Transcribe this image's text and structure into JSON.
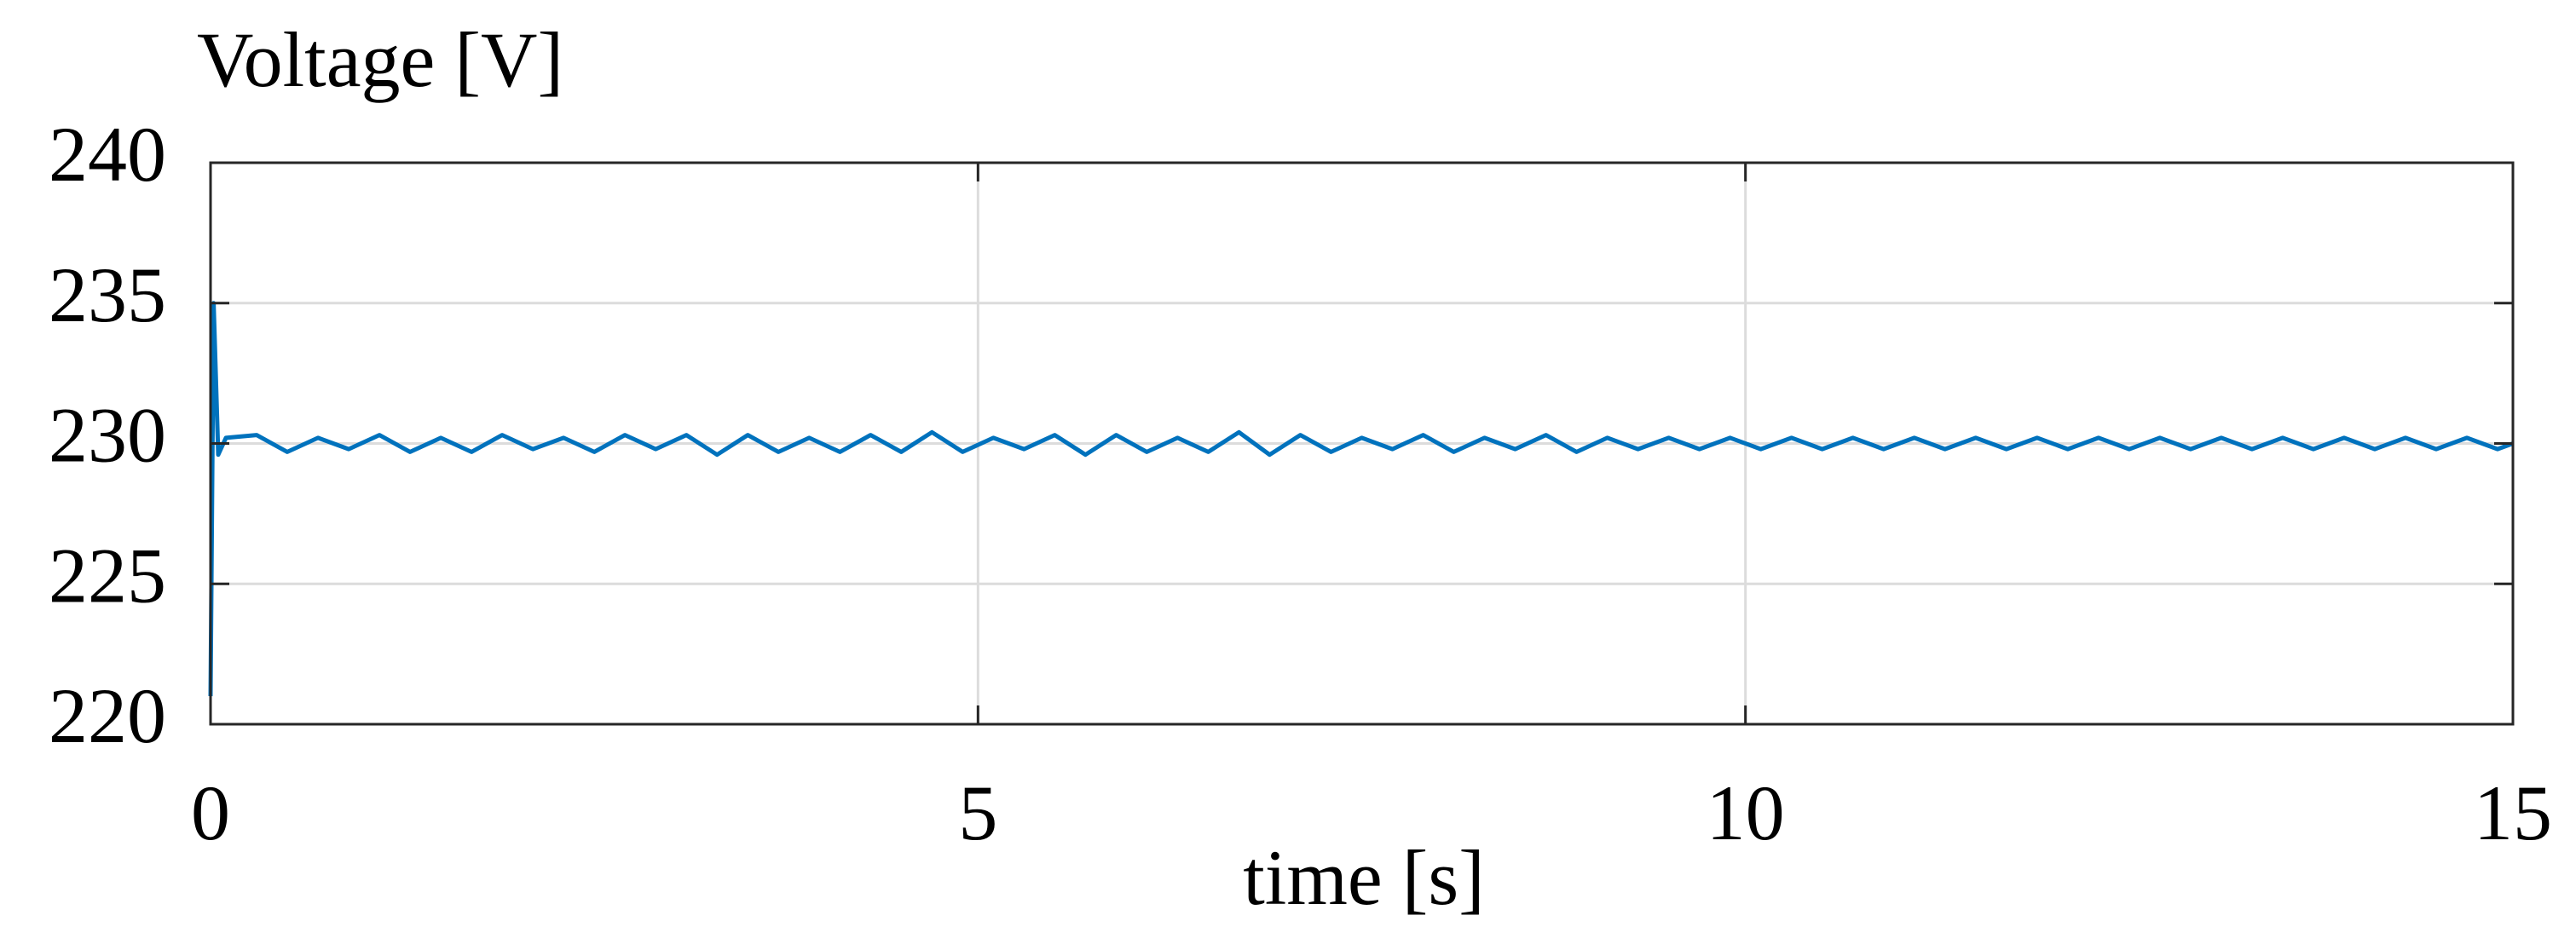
{
  "chart_data": {
    "type": "line",
    "ylabel": "Voltage [V]",
    "xlabel": "time [s]",
    "x": [
      0,
      0.02,
      0.05,
      0.1,
      0.3,
      0.5,
      0.7,
      0.9,
      1.1,
      1.3,
      1.5,
      1.7,
      1.9,
      2.1,
      2.3,
      2.5,
      2.7,
      2.9,
      3.1,
      3.3,
      3.5,
      3.7,
      3.9,
      4.1,
      4.3,
      4.5,
      4.7,
      4.9,
      5.1,
      5.3,
      5.5,
      5.7,
      5.9,
      6.1,
      6.3,
      6.5,
      6.7,
      6.9,
      7.1,
      7.3,
      7.5,
      7.7,
      7.9,
      8.1,
      8.3,
      8.5,
      8.7,
      8.9,
      9.1,
      9.3,
      9.5,
      9.7,
      9.9,
      10.1,
      10.3,
      10.5,
      10.7,
      10.9,
      11.1,
      11.3,
      11.5,
      11.7,
      11.9,
      12.1,
      12.3,
      12.5,
      12.7,
      12.9,
      13.1,
      13.3,
      13.5,
      13.7,
      13.9,
      14.1,
      14.3,
      14.5,
      14.7,
      14.9,
      15
    ],
    "values": [
      221,
      235,
      229.6,
      230.2,
      230.3,
      229.7,
      230.2,
      229.8,
      230.3,
      229.7,
      230.2,
      229.7,
      230.3,
      229.8,
      230.2,
      229.7,
      230.3,
      229.8,
      230.3,
      229.6,
      230.3,
      229.7,
      230.2,
      229.7,
      230.3,
      229.7,
      230.4,
      229.7,
      230.2,
      229.8,
      230.3,
      229.6,
      230.3,
      229.7,
      230.2,
      229.7,
      230.4,
      229.6,
      230.3,
      229.7,
      230.2,
      229.8,
      230.3,
      229.7,
      230.2,
      229.8,
      230.3,
      229.7,
      230.2,
      229.8,
      230.2,
      229.8,
      230.2,
      229.8,
      230.2,
      229.8,
      230.2,
      229.8,
      230.2,
      229.8,
      230.2,
      229.8,
      230.2,
      229.8,
      230.2,
      229.8,
      230.2,
      229.8,
      230.2,
      229.8,
      230.2,
      229.8,
      230.2,
      229.8,
      230.2,
      229.8,
      230.2,
      229.8,
      230
    ],
    "color": "#0072bd",
    "xlim": [
      0,
      15
    ],
    "xticks": [
      0,
      5,
      10,
      15
    ],
    "ylim": [
      220,
      240
    ],
    "yticks": [
      220,
      225,
      230,
      235,
      240
    ],
    "grid": true
  }
}
